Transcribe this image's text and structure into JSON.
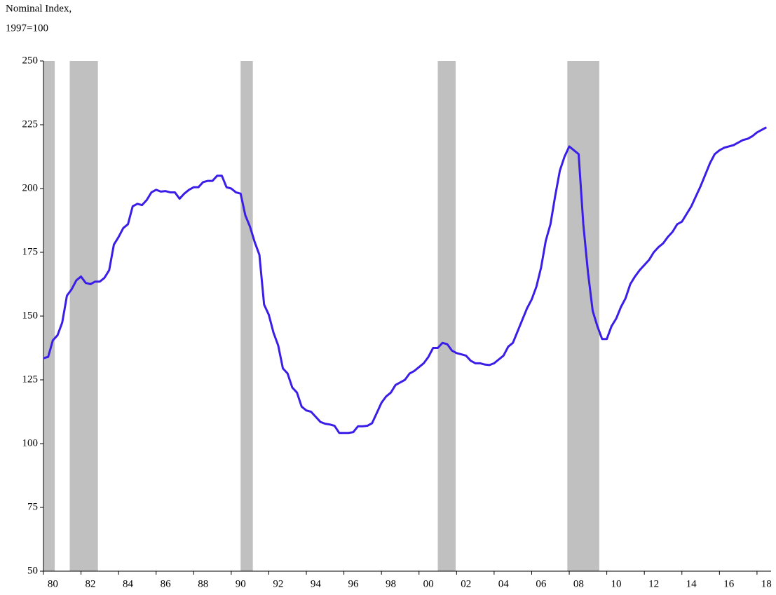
{
  "chart_data": {
    "type": "line",
    "y_axis_label": [
      "Nominal Index,",
      "1997=100"
    ],
    "x": [
      1980,
      1980.25,
      1980.5,
      1980.75,
      1981,
      1981.25,
      1981.5,
      1981.75,
      1982,
      1982.25,
      1982.5,
      1982.75,
      1983,
      1983.25,
      1983.5,
      1983.75,
      1984,
      1984.25,
      1984.5,
      1984.75,
      1985,
      1985.25,
      1985.5,
      1985.75,
      1986,
      1986.25,
      1986.5,
      1986.75,
      1987,
      1987.25,
      1987.5,
      1987.75,
      1988,
      1988.25,
      1988.5,
      1988.75,
      1989,
      1989.25,
      1989.5,
      1989.75,
      1990,
      1990.25,
      1990.5,
      1990.75,
      1991,
      1991.25,
      1991.5,
      1991.75,
      1992,
      1992.25,
      1992.5,
      1992.75,
      1993,
      1993.25,
      1993.5,
      1993.75,
      1994,
      1994.25,
      1994.5,
      1994.75,
      1995,
      1995.25,
      1995.5,
      1995.75,
      1996,
      1996.25,
      1996.5,
      1996.75,
      1997,
      1997.25,
      1997.5,
      1997.75,
      1998,
      1998.25,
      1998.5,
      1998.75,
      1999,
      1999.25,
      1999.5,
      1999.75,
      2000,
      2000.25,
      2000.5,
      2000.75,
      2001,
      2001.25,
      2001.5,
      2001.75,
      2002,
      2002.25,
      2002.5,
      2002.75,
      2003,
      2003.25,
      2003.5,
      2003.75,
      2004,
      2004.25,
      2004.5,
      2004.75,
      2005,
      2005.25,
      2005.5,
      2005.75,
      2006,
      2006.25,
      2006.5,
      2006.75,
      2007,
      2007.25,
      2007.5,
      2007.75,
      2008,
      2008.25,
      2008.5,
      2008.75,
      2009,
      2009.25,
      2009.5,
      2009.75,
      2010,
      2010.25,
      2010.5,
      2010.75,
      2011,
      2011.25,
      2011.5,
      2011.75,
      2012,
      2012.25,
      2012.5,
      2012.75,
      2013,
      2013.25,
      2013.5,
      2013.75,
      2014,
      2014.25,
      2014.5,
      2014.75,
      2015,
      2015.25,
      2015.5,
      2015.75,
      2016,
      2016.25,
      2016.5,
      2016.75,
      2017,
      2017.25,
      2017.5,
      2017.75,
      2018,
      2018.25,
      2018.5
    ],
    "series": [
      {
        "color": "#3a1ee8",
        "values": [
          133.5,
          134,
          140.5,
          142.5,
          147.5,
          158,
          160.5,
          164,
          165.5,
          163,
          162.5,
          163.5,
          163.5,
          165,
          168,
          178,
          181,
          184.5,
          186,
          193,
          194,
          193.5,
          195.5,
          198.5,
          199.5,
          198.8,
          199,
          198.5,
          198.5,
          196,
          198,
          199.5,
          200.5,
          200.5,
          202.5,
          203,
          203,
          205,
          205,
          200.5,
          200,
          198.5,
          198,
          189.5,
          185,
          179,
          174,
          154.5,
          150.5,
          143.5,
          138.5,
          129.5,
          127.5,
          122,
          120,
          114.5,
          113,
          112.5,
          110.5,
          108.5,
          107.8,
          107.5,
          107,
          104.2,
          104.2,
          104.2,
          104.5,
          106.8,
          106.8,
          107,
          108,
          112,
          116,
          118.5,
          120,
          123,
          124,
          125,
          127.5,
          128.5,
          130,
          131.5,
          134,
          137.5,
          137.5,
          139.5,
          139,
          136.5,
          135.5,
          135,
          134.5,
          132.5,
          131.5,
          131.5,
          131,
          130.8,
          131.5,
          133,
          134.5,
          138,
          139.5,
          144,
          148.5,
          153,
          156.5,
          161.5,
          169,
          179.5,
          186,
          197,
          207,
          212.5,
          216.5,
          215,
          213.5,
          186,
          167,
          152,
          146,
          141,
          141,
          146,
          149,
          153.5,
          157,
          162.5,
          165.5,
          168,
          170,
          172,
          175,
          177,
          178.5,
          181,
          183,
          186,
          187,
          190,
          193,
          197,
          201,
          205.5,
          210,
          213.5,
          215,
          216,
          216.5,
          217,
          218,
          219,
          219.5,
          220.5,
          222,
          223,
          224
        ]
      }
    ],
    "shaded_periods": [
      [
        1980,
        1980.6
      ],
      [
        1981.4,
        1982.9
      ],
      [
        1990.5,
        1991.15
      ],
      [
        2001,
        2001.95
      ],
      [
        2007.9,
        2009.6
      ]
    ],
    "shade_color": "#c0c0c0",
    "xlim": [
      1980,
      2018.75
    ],
    "xticks": [
      {
        "value": 1980,
        "label": "80"
      },
      {
        "value": 1982,
        "label": "82"
      },
      {
        "value": 1984,
        "label": "84"
      },
      {
        "value": 1986,
        "label": "86"
      },
      {
        "value": 1988,
        "label": "88"
      },
      {
        "value": 1990,
        "label": "90"
      },
      {
        "value": 1992,
        "label": "92"
      },
      {
        "value": 1994,
        "label": "94"
      },
      {
        "value": 1996,
        "label": "96"
      },
      {
        "value": 1998,
        "label": "98"
      },
      {
        "value": 2000,
        "label": "00"
      },
      {
        "value": 2002,
        "label": "02"
      },
      {
        "value": 2004,
        "label": "04"
      },
      {
        "value": 2006,
        "label": "06"
      },
      {
        "value": 2008,
        "label": "08"
      },
      {
        "value": 2010,
        "label": "10"
      },
      {
        "value": 2012,
        "label": "12"
      },
      {
        "value": 2014,
        "label": "14"
      },
      {
        "value": 2016,
        "label": "16"
      },
      {
        "value": 2018,
        "label": "18"
      }
    ],
    "ylim": [
      50,
      250
    ],
    "yticks": [
      50,
      75,
      100,
      125,
      150,
      175,
      200,
      225,
      250
    ],
    "grid": false
  }
}
